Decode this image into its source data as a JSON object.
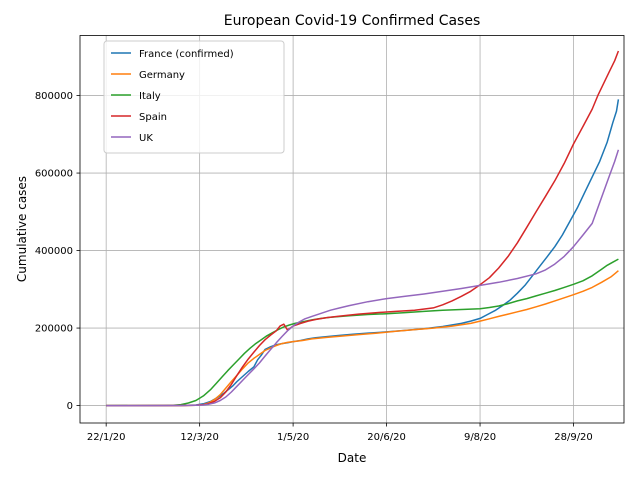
{
  "chart_data": {
    "type": "line",
    "title": "European Covid-19 Confirmed Cases",
    "xlabel": "Date",
    "ylabel": "Cumulative cases",
    "x_tick_labels": [
      "22/1/20",
      "12/3/20",
      "1/5/20",
      "20/6/20",
      "9/8/20",
      "28/9/20"
    ],
    "x_tick_days": [
      0,
      50,
      100,
      150,
      200,
      250
    ],
    "xlim_days": [
      -14,
      277
    ],
    "y_ticks": [
      0,
      200000,
      400000,
      600000,
      800000
    ],
    "y_tick_labels": [
      "0",
      "200000",
      "400000",
      "600000",
      "800000"
    ],
    "ylim": [
      -45000,
      955000
    ],
    "grid": true,
    "legend_position": "top-left",
    "series": [
      {
        "name": "France (confirmed)",
        "color": "#1f77b4",
        "points": [
          [
            0,
            0
          ],
          [
            40,
            100
          ],
          [
            48,
            1500
          ],
          [
            52,
            4500
          ],
          [
            56,
            11000
          ],
          [
            60,
            22000
          ],
          [
            63,
            32000
          ],
          [
            66,
            44000
          ],
          [
            68,
            52000
          ],
          [
            70,
            62000
          ],
          [
            73,
            75000
          ],
          [
            76,
            88000
          ],
          [
            79,
            100000
          ],
          [
            81,
            118000
          ],
          [
            83,
            130000
          ],
          [
            85,
            145000
          ],
          [
            88,
            152000
          ],
          [
            91,
            157000
          ],
          [
            94,
            160000
          ],
          [
            97,
            162000
          ],
          [
            100,
            165000
          ],
          [
            104,
            168000
          ],
          [
            108,
            172000
          ],
          [
            112,
            175000
          ],
          [
            118,
            178000
          ],
          [
            125,
            181000
          ],
          [
            132,
            184000
          ],
          [
            140,
            187000
          ],
          [
            150,
            190000
          ],
          [
            160,
            194000
          ],
          [
            170,
            198000
          ],
          [
            180,
            204000
          ],
          [
            190,
            212000
          ],
          [
            195,
            218000
          ],
          [
            200,
            225000
          ],
          [
            204,
            235000
          ],
          [
            208,
            245000
          ],
          [
            212,
            258000
          ],
          [
            216,
            272000
          ],
          [
            220,
            290000
          ],
          [
            224,
            310000
          ],
          [
            228,
            335000
          ],
          [
            232,
            360000
          ],
          [
            236,
            385000
          ],
          [
            240,
            410000
          ],
          [
            244,
            440000
          ],
          [
            248,
            475000
          ],
          [
            252,
            510000
          ],
          [
            256,
            550000
          ],
          [
            260,
            590000
          ],
          [
            264,
            630000
          ],
          [
            268,
            680000
          ],
          [
            271,
            730000
          ],
          [
            273,
            760000
          ],
          [
            274,
            790000
          ]
        ]
      },
      {
        "name": "Germany",
        "color": "#ff7f0e",
        "points": [
          [
            0,
            0
          ],
          [
            40,
            100
          ],
          [
            48,
            800
          ],
          [
            52,
            2500
          ],
          [
            55,
            7000
          ],
          [
            58,
            16000
          ],
          [
            61,
            28000
          ],
          [
            64,
            45000
          ],
          [
            67,
            62000
          ],
          [
            70,
            78000
          ],
          [
            73,
            95000
          ],
          [
            76,
            110000
          ],
          [
            79,
            122000
          ],
          [
            82,
            132000
          ],
          [
            85,
            142000
          ],
          [
            88,
            149000
          ],
          [
            91,
            155000
          ],
          [
            94,
            160000
          ],
          [
            97,
            163000
          ],
          [
            100,
            165000
          ],
          [
            105,
            168000
          ],
          [
            110,
            172000
          ],
          [
            118,
            176000
          ],
          [
            125,
            179000
          ],
          [
            135,
            183000
          ],
          [
            145,
            187000
          ],
          [
            155,
            192000
          ],
          [
            165,
            196000
          ],
          [
            175,
            200000
          ],
          [
            185,
            205000
          ],
          [
            195,
            212000
          ],
          [
            200,
            218000
          ],
          [
            205,
            224000
          ],
          [
            210,
            230000
          ],
          [
            215,
            236000
          ],
          [
            220,
            242000
          ],
          [
            225,
            248000
          ],
          [
            230,
            255000
          ],
          [
            235,
            262000
          ],
          [
            240,
            270000
          ],
          [
            245,
            278000
          ],
          [
            250,
            286000
          ],
          [
            255,
            295000
          ],
          [
            260,
            305000
          ],
          [
            265,
            318000
          ],
          [
            270,
            332000
          ],
          [
            272,
            340000
          ],
          [
            274,
            348000
          ]
        ]
      },
      {
        "name": "Italy",
        "color": "#2ca02c",
        "points": [
          [
            0,
            0
          ],
          [
            30,
            100
          ],
          [
            36,
            800
          ],
          [
            40,
            2500
          ],
          [
            44,
            6500
          ],
          [
            48,
            13000
          ],
          [
            52,
            25000
          ],
          [
            56,
            42000
          ],
          [
            59,
            58000
          ],
          [
            62,
            74000
          ],
          [
            65,
            90000
          ],
          [
            68,
            105000
          ],
          [
            71,
            120000
          ],
          [
            74,
            135000
          ],
          [
            77,
            148000
          ],
          [
            80,
            160000
          ],
          [
            83,
            170000
          ],
          [
            86,
            180000
          ],
          [
            89,
            188000
          ],
          [
            92,
            196000
          ],
          [
            95,
            203000
          ],
          [
            98,
            208000
          ],
          [
            101,
            212000
          ],
          [
            105,
            216000
          ],
          [
            110,
            221000
          ],
          [
            115,
            225000
          ],
          [
            120,
            228000
          ],
          [
            130,
            232000
          ],
          [
            140,
            235000
          ],
          [
            150,
            237000
          ],
          [
            160,
            240000
          ],
          [
            170,
            243000
          ],
          [
            180,
            246000
          ],
          [
            190,
            248000
          ],
          [
            200,
            250000
          ],
          [
            205,
            253000
          ],
          [
            210,
            257000
          ],
          [
            215,
            263000
          ],
          [
            220,
            270000
          ],
          [
            225,
            276000
          ],
          [
            230,
            283000
          ],
          [
            235,
            290000
          ],
          [
            240,
            297000
          ],
          [
            245,
            305000
          ],
          [
            250,
            313000
          ],
          [
            255,
            322000
          ],
          [
            260,
            335000
          ],
          [
            265,
            352000
          ],
          [
            268,
            362000
          ],
          [
            271,
            370000
          ],
          [
            274,
            378000
          ]
        ]
      },
      {
        "name": "Spain",
        "color": "#d62728",
        "points": [
          [
            0,
            0
          ],
          [
            40,
            100
          ],
          [
            48,
            600
          ],
          [
            52,
            2000
          ],
          [
            55,
            5000
          ],
          [
            58,
            11000
          ],
          [
            61,
            20000
          ],
          [
            64,
            35000
          ],
          [
            67,
            55000
          ],
          [
            70,
            78000
          ],
          [
            73,
            100000
          ],
          [
            76,
            120000
          ],
          [
            79,
            138000
          ],
          [
            82,
            155000
          ],
          [
            85,
            170000
          ],
          [
            88,
            182000
          ],
          [
            91,
            193000
          ],
          [
            93,
            205000
          ],
          [
            95,
            210000
          ],
          [
            97,
            195000
          ],
          [
            100,
            205000
          ],
          [
            104,
            212000
          ],
          [
            108,
            218000
          ],
          [
            112,
            222000
          ],
          [
            118,
            227000
          ],
          [
            125,
            231000
          ],
          [
            135,
            236000
          ],
          [
            145,
            240000
          ],
          [
            155,
            243000
          ],
          [
            165,
            246000
          ],
          [
            175,
            252000
          ],
          [
            180,
            260000
          ],
          [
            185,
            270000
          ],
          [
            190,
            282000
          ],
          [
            195,
            295000
          ],
          [
            200,
            312000
          ],
          [
            205,
            330000
          ],
          [
            210,
            355000
          ],
          [
            215,
            385000
          ],
          [
            220,
            420000
          ],
          [
            225,
            460000
          ],
          [
            230,
            500000
          ],
          [
            235,
            540000
          ],
          [
            240,
            580000
          ],
          [
            245,
            625000
          ],
          [
            250,
            675000
          ],
          [
            255,
            720000
          ],
          [
            260,
            765000
          ],
          [
            263,
            800000
          ],
          [
            266,
            830000
          ],
          [
            269,
            860000
          ],
          [
            272,
            890000
          ],
          [
            274,
            915000
          ]
        ]
      },
      {
        "name": "UK",
        "color": "#9467bd",
        "points": [
          [
            0,
            0
          ],
          [
            40,
            100
          ],
          [
            48,
            600
          ],
          [
            52,
            1500
          ],
          [
            55,
            3500
          ],
          [
            58,
            7000
          ],
          [
            61,
            13000
          ],
          [
            64,
            22000
          ],
          [
            67,
            35000
          ],
          [
            70,
            50000
          ],
          [
            73,
            65000
          ],
          [
            76,
            80000
          ],
          [
            79,
            95000
          ],
          [
            82,
            110000
          ],
          [
            85,
            128000
          ],
          [
            88,
            145000
          ],
          [
            91,
            162000
          ],
          [
            94,
            178000
          ],
          [
            97,
            193000
          ],
          [
            100,
            205000
          ],
          [
            103,
            215000
          ],
          [
            106,
            223000
          ],
          [
            110,
            230000
          ],
          [
            115,
            238000
          ],
          [
            120,
            246000
          ],
          [
            125,
            252000
          ],
          [
            130,
            258000
          ],
          [
            140,
            268000
          ],
          [
            150,
            276000
          ],
          [
            160,
            282000
          ],
          [
            170,
            288000
          ],
          [
            180,
            295000
          ],
          [
            190,
            302000
          ],
          [
            200,
            310000
          ],
          [
            210,
            318000
          ],
          [
            220,
            328000
          ],
          [
            230,
            340000
          ],
          [
            235,
            350000
          ],
          [
            240,
            365000
          ],
          [
            245,
            385000
          ],
          [
            250,
            410000
          ],
          [
            255,
            440000
          ],
          [
            260,
            470000
          ],
          [
            263,
            510000
          ],
          [
            266,
            550000
          ],
          [
            269,
            590000
          ],
          [
            272,
            630000
          ],
          [
            274,
            660000
          ]
        ]
      }
    ]
  }
}
